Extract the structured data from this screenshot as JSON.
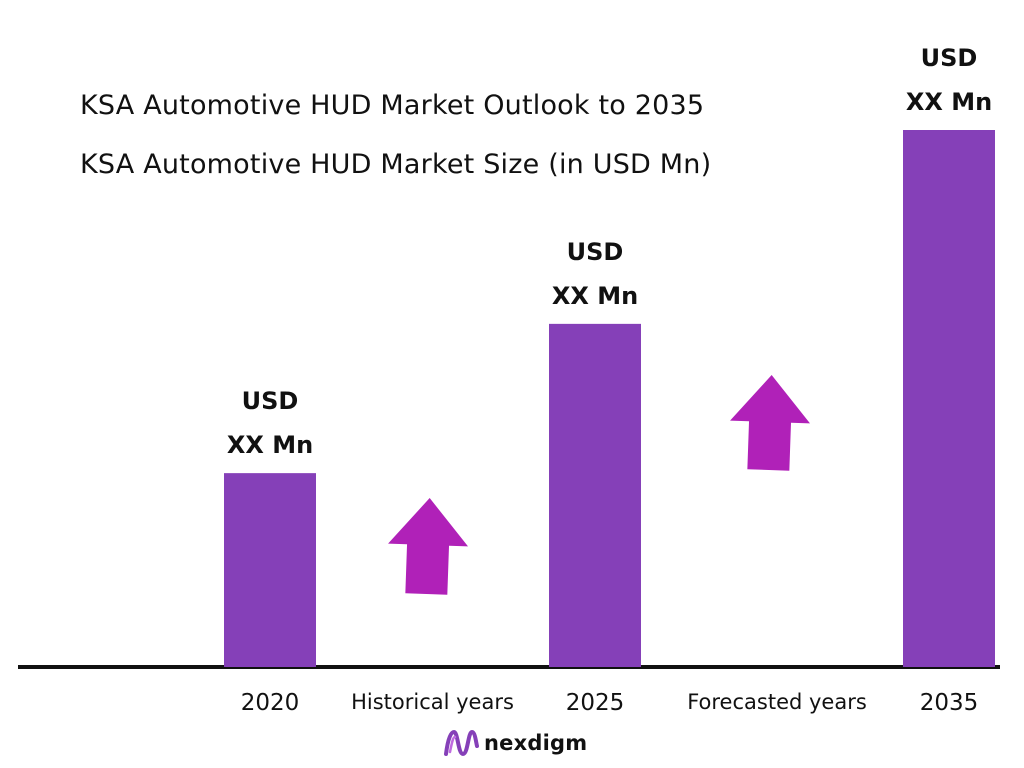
{
  "title": "KSA Automotive HUD Market Outlook to 2035",
  "subtitle": "KSA Automotive HUD Market Size (in USD Mn)",
  "chart_data": {
    "type": "bar",
    "title": "KSA Automotive HUD Market Outlook to 2035",
    "subtitle": "KSA Automotive HUD Market Size (in USD Mn)",
    "categories": [
      "2020",
      "2025",
      "2035"
    ],
    "values": [
      100,
      177,
      277
    ],
    "value_labels": [
      [
        "USD",
        "XX Mn"
      ],
      [
        "USD",
        "XX Mn"
      ],
      [
        "USD",
        "XX Mn"
      ]
    ],
    "period_labels": [
      "Historical years",
      "Forecasted years"
    ],
    "ylim": [
      0,
      277
    ],
    "grid": false,
    "legend": "none",
    "colors": {
      "bar": "#8540B8",
      "arrow": "#B021B8",
      "axis": "#111111"
    }
  },
  "brand": {
    "name": "nexdigm",
    "icon": "nexdigm-logo-icon",
    "color": "#8540B8"
  }
}
